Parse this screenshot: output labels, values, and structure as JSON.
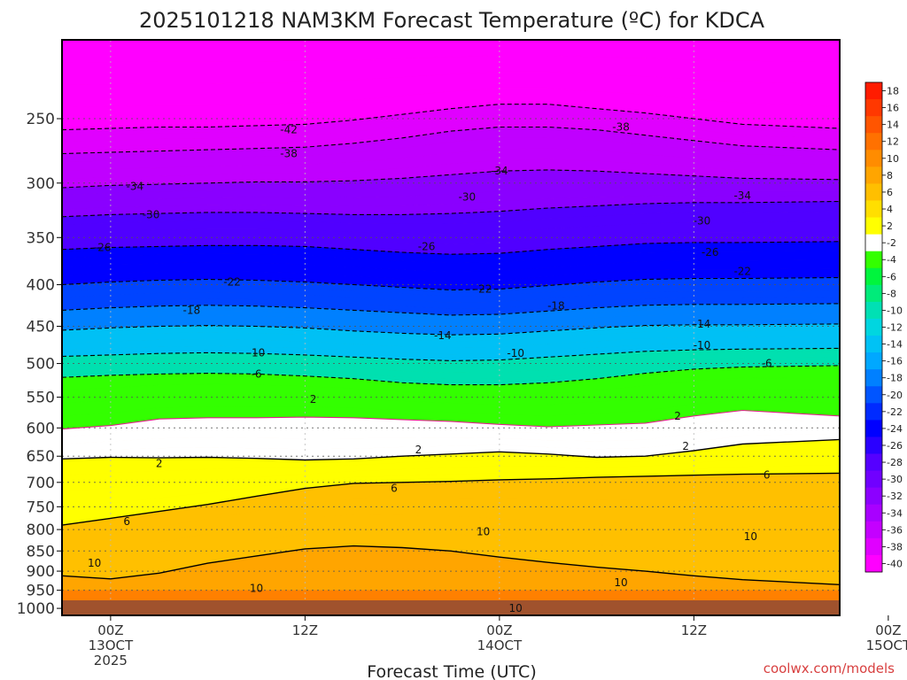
{
  "chart_data": {
    "type": "heatmap",
    "title": "2025101218 NAM3KM Forecast Temperature (ºC) for KDCA",
    "xlabel": "Forecast Time (UTC)",
    "ylabel": "",
    "y_axis": {
      "levels": [
        1000,
        950,
        900,
        850,
        800,
        750,
        700,
        650,
        600,
        550,
        500,
        450,
        400,
        350,
        300,
        250
      ],
      "labels": [
        "1000",
        "950",
        "900",
        "850",
        "800",
        "750",
        "700",
        "650",
        "600",
        "550",
        "500",
        "450",
        "400",
        "350",
        "300",
        "250"
      ],
      "top_hpa": 200,
      "bottom_hpa": 1020,
      "scale": "log"
    },
    "x_axis": {
      "range_hours": [
        -3,
        45
      ],
      "ticks": [
        {
          "hour": 0,
          "label": [
            "00Z",
            "13OCT",
            "2025"
          ]
        },
        {
          "hour": 12,
          "label": [
            "12Z"
          ]
        },
        {
          "hour": 24,
          "label": [
            "00Z",
            "14OCT"
          ]
        },
        {
          "hour": 36,
          "label": [
            "12Z"
          ]
        },
        {
          "hour": 48,
          "label": [
            "00Z",
            "15OCT"
          ]
        }
      ]
    },
    "colorbar": {
      "labels": [
        "18",
        "16",
        "14",
        "12",
        "10",
        "8",
        "6",
        "4",
        "2",
        "-2",
        "-4",
        "-6",
        "-8",
        "-10",
        "-12",
        "-14",
        "-16",
        "-18",
        "-20",
        "-22",
        "-24",
        "-26",
        "-28",
        "-30",
        "-32",
        "-34",
        "-36",
        "-38",
        "-40"
      ],
      "colors": [
        "#ff1c00",
        "#ff3800",
        "#ff5500",
        "#ff7100",
        "#ff8c00",
        "#ffa500",
        "#ffbf00",
        "#ffdf00",
        "#ffff00",
        "#ffffff",
        "#33ff00",
        "#00f53d",
        "#00eb7a",
        "#00e0b4",
        "#00d6e0",
        "#00c2f5",
        "#00a8ff",
        "#0080ff",
        "#0055ff",
        "#002bff",
        "#0000ff",
        "#2a00ff",
        "#5500ff",
        "#7000ff",
        "#8c00ff",
        "#a800ff",
        "#c400ff",
        "#e000ff",
        "#ff00ff"
      ]
    },
    "isotherms_C": [
      2,
      6,
      10,
      -6,
      -10,
      -14,
      -18,
      -22,
      -26,
      -30,
      -34,
      -38,
      -42
    ],
    "isotherm_levels_hpa": {
      "t10": [
        912,
        920,
        905,
        880,
        862,
        845,
        838,
        842,
        850,
        865,
        878,
        890,
        900,
        912,
        922,
        935
      ],
      "t6": [
        790,
        775,
        760,
        745,
        728,
        712,
        702,
        700,
        698,
        695,
        693,
        690,
        688,
        686,
        684,
        682
      ],
      "t2": [
        655,
        652,
        653,
        652,
        654,
        657,
        655,
        650,
        646,
        642,
        646,
        652,
        650,
        640,
        628,
        620
      ],
      "tm2_melt": [
        602,
        596,
        585,
        583,
        583,
        582,
        583,
        586,
        589,
        594,
        598,
        595,
        592,
        580,
        571,
        580
      ],
      "tm6": [
        520,
        517,
        515,
        514,
        515,
        518,
        522,
        528,
        531,
        531,
        528,
        522,
        514,
        508,
        505,
        503
      ],
      "tm10": [
        490,
        488,
        486,
        485,
        486,
        488,
        491,
        494,
        496,
        495,
        491,
        487,
        483,
        481,
        480,
        479
      ],
      "tm14": [
        455,
        452,
        450,
        449,
        450,
        452,
        456,
        459,
        461,
        460,
        456,
        452,
        449,
        448,
        448,
        447
      ],
      "tm18": [
        430,
        427,
        425,
        424,
        425,
        427,
        430,
        433,
        436,
        435,
        431,
        427,
        424,
        423,
        423,
        422
      ],
      "tm22": [
        400,
        397,
        395,
        394,
        395,
        397,
        400,
        403,
        406,
        405,
        401,
        397,
        394,
        393,
        393,
        392
      ],
      "tm26": [
        362,
        360,
        359,
        358,
        358,
        359,
        362,
        365,
        367,
        366,
        362,
        359,
        356,
        355,
        355,
        354
      ],
      "tm30": [
        330,
        328,
        327,
        326,
        326,
        327,
        328,
        328,
        327,
        325,
        322,
        320,
        318,
        317,
        317,
        316
      ],
      "tm34": [
        304,
        302,
        301,
        300,
        299,
        299,
        298,
        296,
        293,
        290,
        289,
        290,
        292,
        294,
        296,
        297
      ],
      "tm38": [
        276,
        275,
        274,
        273,
        272,
        271,
        268,
        264,
        259,
        256,
        256,
        258,
        262,
        266,
        270,
        273
      ],
      "tm42": [
        258,
        257,
        256,
        256,
        255,
        254,
        251,
        247,
        243,
        240,
        240,
        243,
        246,
        250,
        254,
        257
      ]
    },
    "isotherm_x_hours": [
      -3,
      0,
      3,
      6,
      9,
      12,
      15,
      18,
      21,
      24,
      27,
      30,
      33,
      36,
      39,
      45
    ],
    "contour_labels": [
      {
        "text": "-42",
        "hour": 11,
        "hpa": 258
      },
      {
        "text": "-38",
        "hour": 31.5,
        "hpa": 256
      },
      {
        "text": "-38",
        "hour": 11,
        "hpa": 276
      },
      {
        "text": "-34",
        "hour": 24,
        "hpa": 290
      },
      {
        "text": "-34",
        "hour": 1.5,
        "hpa": 303
      },
      {
        "text": "-34",
        "hour": 39,
        "hpa": 311
      },
      {
        "text": "-30",
        "hour": 22,
        "hpa": 312
      },
      {
        "text": "-30",
        "hour": 2.5,
        "hpa": 328
      },
      {
        "text": "-30",
        "hour": 36.5,
        "hpa": 334
      },
      {
        "text": "-26",
        "hour": -0.5,
        "hpa": 360
      },
      {
        "text": "-26",
        "hour": 19.5,
        "hpa": 359
      },
      {
        "text": "-26",
        "hour": 37,
        "hpa": 365
      },
      {
        "text": "-22",
        "hour": 39,
        "hpa": 385
      },
      {
        "text": "-22",
        "hour": 7.5,
        "hpa": 397
      },
      {
        "text": "-22",
        "hour": 23,
        "hpa": 405
      },
      {
        "text": "-18",
        "hour": 27.5,
        "hpa": 425
      },
      {
        "text": "-18",
        "hour": 5,
        "hpa": 430
      },
      {
        "text": "-14",
        "hour": 36.5,
        "hpa": 447
      },
      {
        "text": "-14",
        "hour": 20.5,
        "hpa": 462
      },
      {
        "text": "-10",
        "hour": 36.5,
        "hpa": 475
      },
      {
        "text": "-10",
        "hour": 9,
        "hpa": 485
      },
      {
        "text": "-10",
        "hour": 25,
        "hpa": 486
      },
      {
        "text": "-6",
        "hour": 40.5,
        "hpa": 500
      },
      {
        "text": "-6",
        "hour": 9,
        "hpa": 515
      },
      {
        "text": "2",
        "hour": 12.5,
        "hpa": 553
      },
      {
        "text": "2",
        "hour": 35,
        "hpa": 580
      },
      {
        "text": "2",
        "hour": 19,
        "hpa": 638
      },
      {
        "text": "2",
        "hour": 35.5,
        "hpa": 632
      },
      {
        "text": "2",
        "hour": 3,
        "hpa": 664
      },
      {
        "text": "6",
        "hour": 40.5,
        "hpa": 686
      },
      {
        "text": "6",
        "hour": 17.5,
        "hpa": 712
      },
      {
        "text": "6",
        "hour": 1,
        "hpa": 782
      },
      {
        "text": "10",
        "hour": 23,
        "hpa": 805
      },
      {
        "text": "10",
        "hour": 39.5,
        "hpa": 816
      },
      {
        "text": "10",
        "hour": -1,
        "hpa": 880
      },
      {
        "text": "10",
        "hour": 9,
        "hpa": 945
      },
      {
        "text": "10",
        "hour": 31.5,
        "hpa": 930
      },
      {
        "text": "10",
        "hour": 25,
        "hpa": 1000
      }
    ],
    "grid": true
  },
  "credit": "coolwx.com/models"
}
